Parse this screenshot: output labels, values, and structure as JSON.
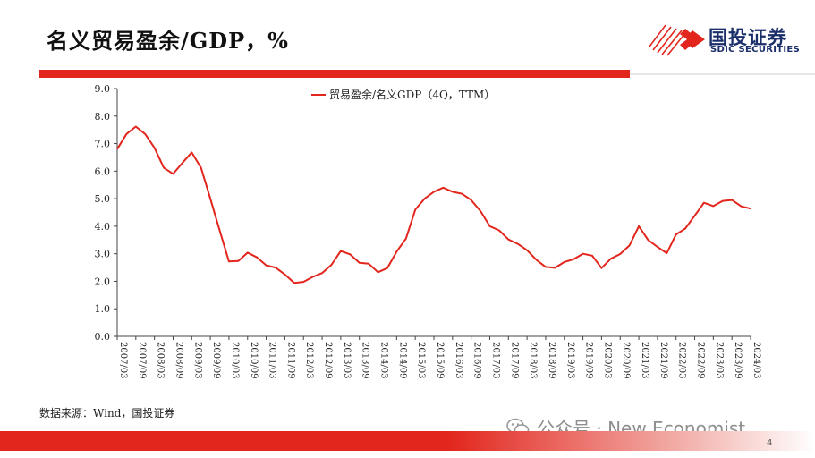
{
  "title": "名义贸易盈余/GDP，%",
  "logo": {
    "cn": "国投证券",
    "en": "SDIC SECURITIES"
  },
  "source": "数据来源：Wind，国投证券",
  "watermark": "公众号 · New Economist",
  "page_number": "4",
  "colors": {
    "accent": "#e2261d",
    "brand": "#1b2f6b",
    "series": "#e2261d"
  },
  "chart_data": {
    "type": "line",
    "title": "",
    "xlabel": "",
    "ylabel": "",
    "ylim": [
      0,
      9
    ],
    "yticks": [
      "0.0",
      "1.0",
      "2.0",
      "3.0",
      "4.0",
      "5.0",
      "6.0",
      "7.0",
      "8.0",
      "9.0"
    ],
    "grid": false,
    "legend_position": "top-center",
    "x_tick_labels": [
      "2007/03",
      "2007/09",
      "2008/03",
      "2008/09",
      "2009/03",
      "2009/09",
      "2010/03",
      "2010/09",
      "2011/03",
      "2011/09",
      "2012/03",
      "2012/09",
      "2013/03",
      "2013/09",
      "2014/03",
      "2014/09",
      "2015/03",
      "2015/09",
      "2016/03",
      "2016/09",
      "2017/03",
      "2017/09",
      "2018/03",
      "2018/09",
      "2019/03",
      "2019/09",
      "2020/03",
      "2020/09",
      "2021/03",
      "2021/09",
      "2022/03",
      "2022/09",
      "2023/03",
      "2023/09",
      "2024/03"
    ],
    "series": [
      {
        "name": "贸易盈余/名义GDP（4Q，TTM）",
        "x": [
          "2007/03",
          "2007/06",
          "2007/09",
          "2007/12",
          "2008/03",
          "2008/06",
          "2008/09",
          "2008/12",
          "2009/03",
          "2009/06",
          "2009/09",
          "2009/12",
          "2010/03",
          "2010/06",
          "2010/09",
          "2010/12",
          "2011/03",
          "2011/06",
          "2011/09",
          "2011/12",
          "2012/03",
          "2012/06",
          "2012/09",
          "2012/12",
          "2013/03",
          "2013/06",
          "2013/09",
          "2013/12",
          "2014/03",
          "2014/06",
          "2014/09",
          "2014/12",
          "2015/03",
          "2015/06",
          "2015/09",
          "2015/12",
          "2016/03",
          "2016/06",
          "2016/09",
          "2016/12",
          "2017/03",
          "2017/06",
          "2017/09",
          "2017/12",
          "2018/03",
          "2018/06",
          "2018/09",
          "2018/12",
          "2019/03",
          "2019/06",
          "2019/09",
          "2019/12",
          "2020/03",
          "2020/06",
          "2020/09",
          "2020/12",
          "2021/03",
          "2021/06",
          "2021/09",
          "2021/12",
          "2022/03",
          "2022/06",
          "2022/09",
          "2022/12",
          "2023/03",
          "2023/06",
          "2023/09",
          "2023/12",
          "2024/03"
        ],
        "values": [
          6.8,
          7.35,
          7.62,
          7.35,
          6.85,
          6.12,
          5.9,
          6.3,
          6.68,
          6.12,
          5.0,
          3.85,
          2.72,
          2.74,
          3.04,
          2.87,
          2.58,
          2.5,
          2.25,
          1.94,
          1.98,
          2.16,
          2.3,
          2.6,
          3.1,
          2.98,
          2.67,
          2.64,
          2.33,
          2.48,
          3.08,
          3.55,
          4.6,
          5.0,
          5.25,
          5.4,
          5.25,
          5.18,
          4.95,
          4.55,
          4.0,
          3.85,
          3.52,
          3.36,
          3.13,
          2.78,
          2.52,
          2.49,
          2.7,
          2.8,
          3.0,
          2.93,
          2.48,
          2.82,
          2.99,
          3.3,
          4.0,
          3.5,
          3.25,
          3.02,
          3.7,
          3.92,
          4.38,
          4.85,
          4.73,
          4.92,
          4.95,
          4.72,
          4.64
        ]
      }
    ]
  }
}
